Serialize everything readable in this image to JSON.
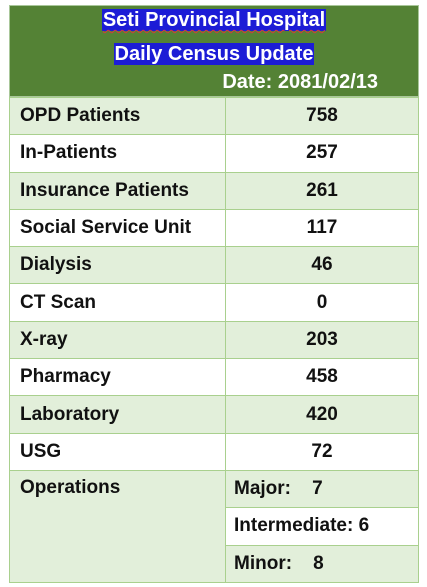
{
  "header": {
    "title_line1": "Seti Provincial Hospital",
    "title_line2": "Daily Census Update",
    "date": "Date: 2081/02/13"
  },
  "rows": [
    {
      "label": "OPD Patients",
      "value": "758"
    },
    {
      "label": "In-Patients",
      "value": "257"
    },
    {
      "label": "Insurance Patients",
      "value": "261"
    },
    {
      "label": "Social Service Unit",
      "value": "117"
    },
    {
      "label": "Dialysis",
      "value": "46"
    },
    {
      "label": "CT Scan",
      "value": "0"
    },
    {
      "label": "X-ray",
      "value": "203"
    },
    {
      "label": "Pharmacy",
      "value": "458"
    },
    {
      "label": "Laboratory",
      "value": "420"
    },
    {
      "label": "USG",
      "value": "72"
    }
  ],
  "operations": {
    "label": "Operations",
    "major": "Major:    7",
    "intermediate": "Intermediate: 6",
    "minor": "Minor:    8"
  },
  "colors": {
    "header_green": "#548235",
    "title_highlight": "#1c1cd6",
    "row_light_green": "#e2efda",
    "border": "#a9d08e"
  }
}
